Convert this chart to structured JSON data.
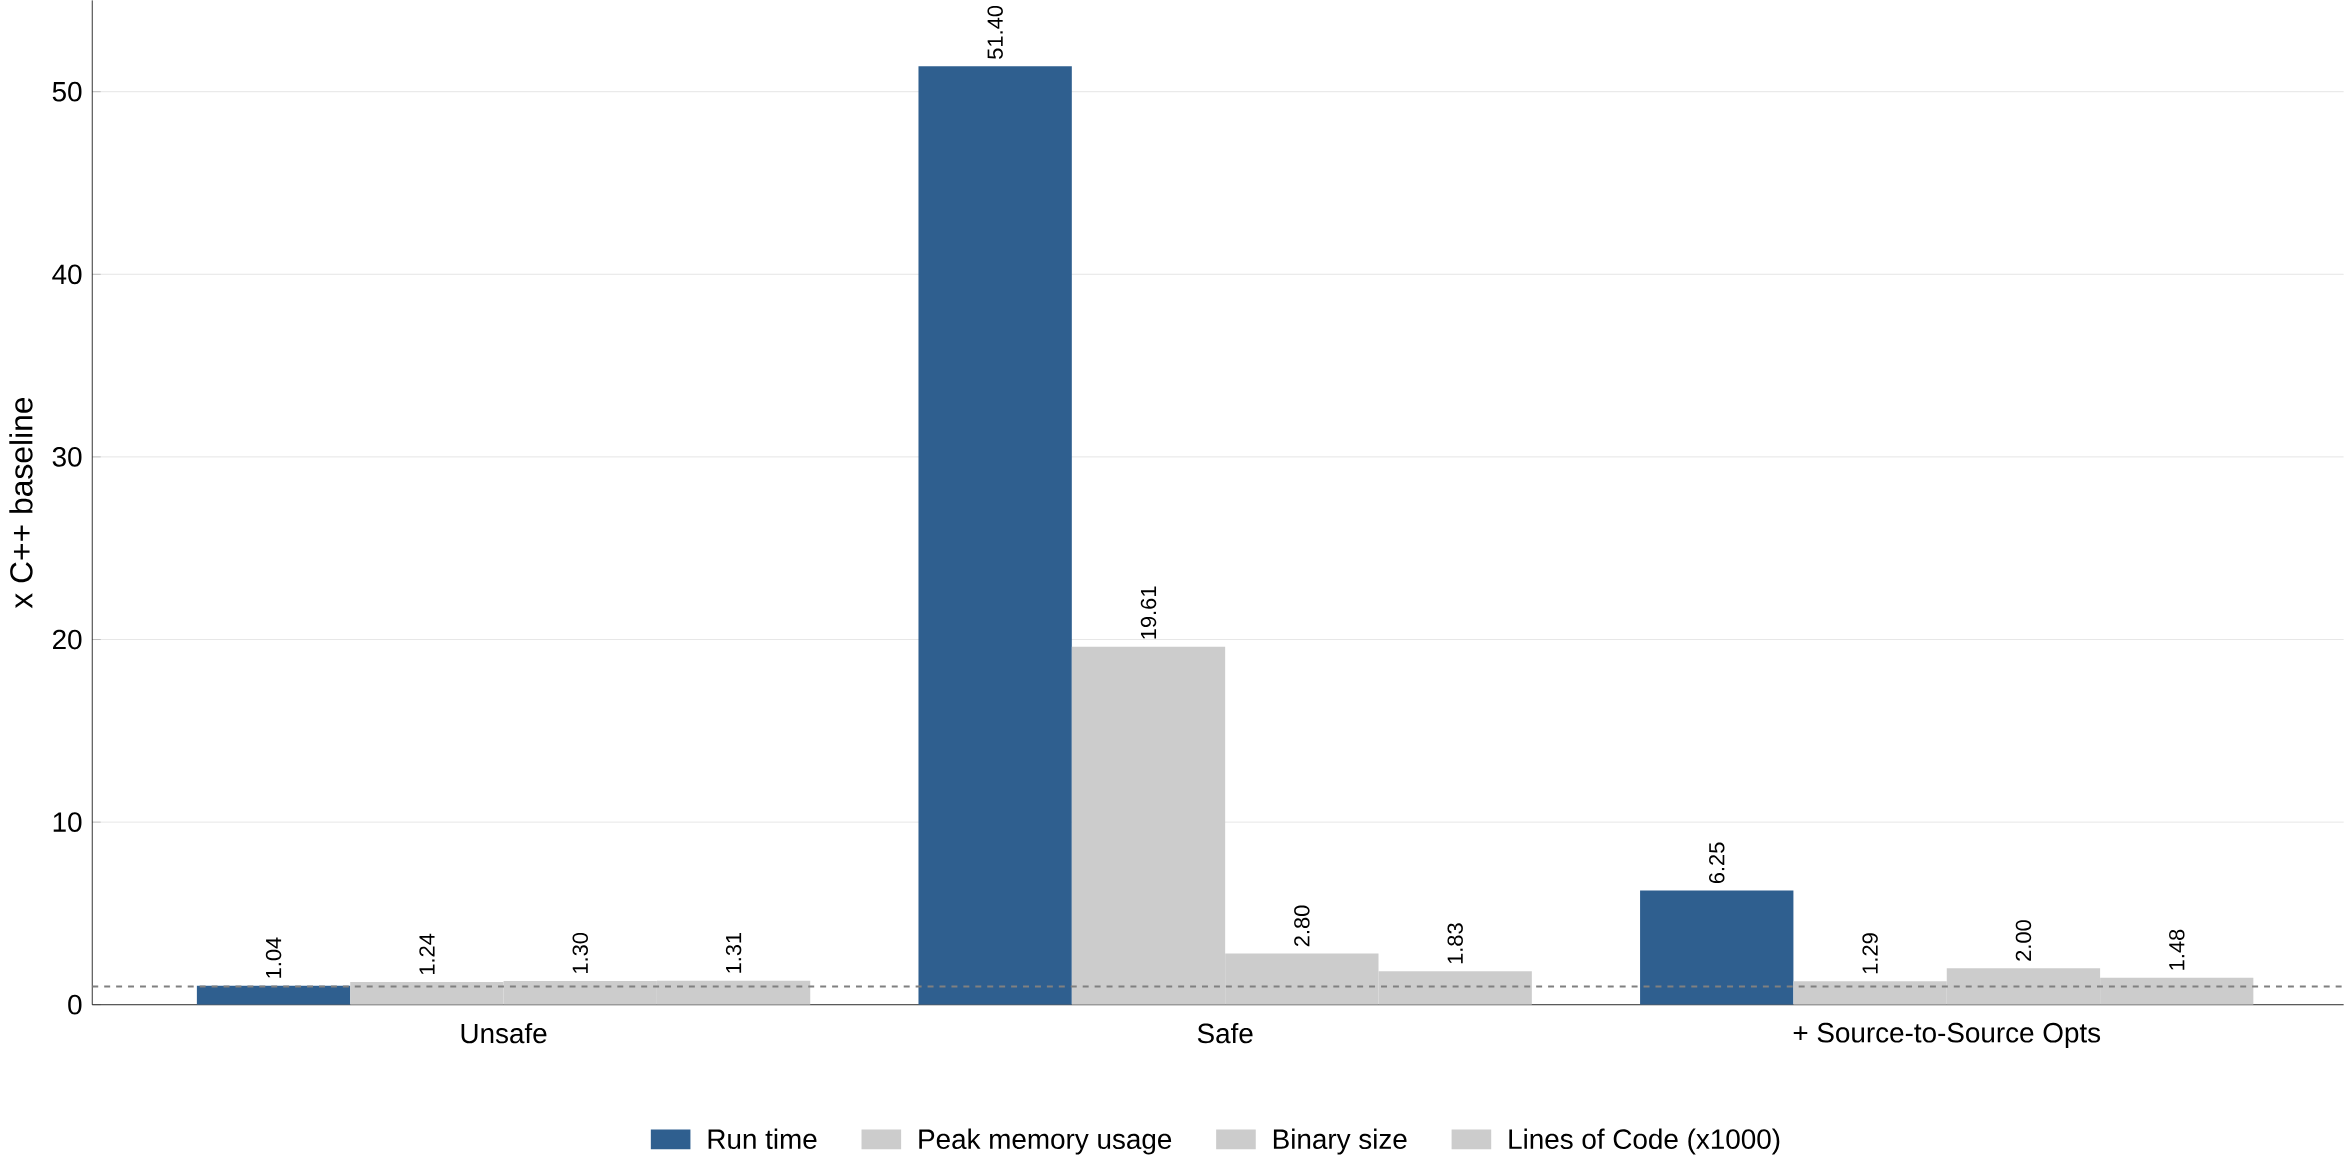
{
  "chart_data": {
    "type": "bar",
    "ylabel": "x C++ baseline",
    "categories": [
      "Unsafe",
      "Safe",
      "+ Source-to-Source Opts"
    ],
    "series": [
      {
        "name": "Run time",
        "color": "#2f5f8f",
        "values": [
          1.04,
          51.4,
          6.25
        ],
        "value_labels": [
          "1.04",
          "51.40",
          "6.25"
        ]
      },
      {
        "name": "Peak memory usage",
        "color": "#cccccc",
        "values": [
          1.24,
          19.61,
          1.29
        ],
        "value_labels": [
          "1.24",
          "19.61",
          "1.29"
        ]
      },
      {
        "name": "Binary size",
        "color": "#cccccc",
        "values": [
          1.3,
          2.8,
          2.0
        ],
        "value_labels": [
          "1.30",
          "2.80",
          "2.00"
        ]
      },
      {
        "name": "Lines of Code (x1000)",
        "color": "#cccccc",
        "values": [
          1.31,
          1.83,
          1.48
        ],
        "value_labels": [
          "1.31",
          "1.83",
          "1.48"
        ]
      }
    ],
    "ylim": [
      0,
      55
    ],
    "yticks": [
      0,
      10,
      20,
      30,
      40,
      50
    ],
    "grid": "y",
    "legend": "bottom",
    "ref_lines": [
      {
        "axis": "y",
        "value": 1,
        "color": "#808080",
        "line_style": "dashed"
      }
    ]
  }
}
